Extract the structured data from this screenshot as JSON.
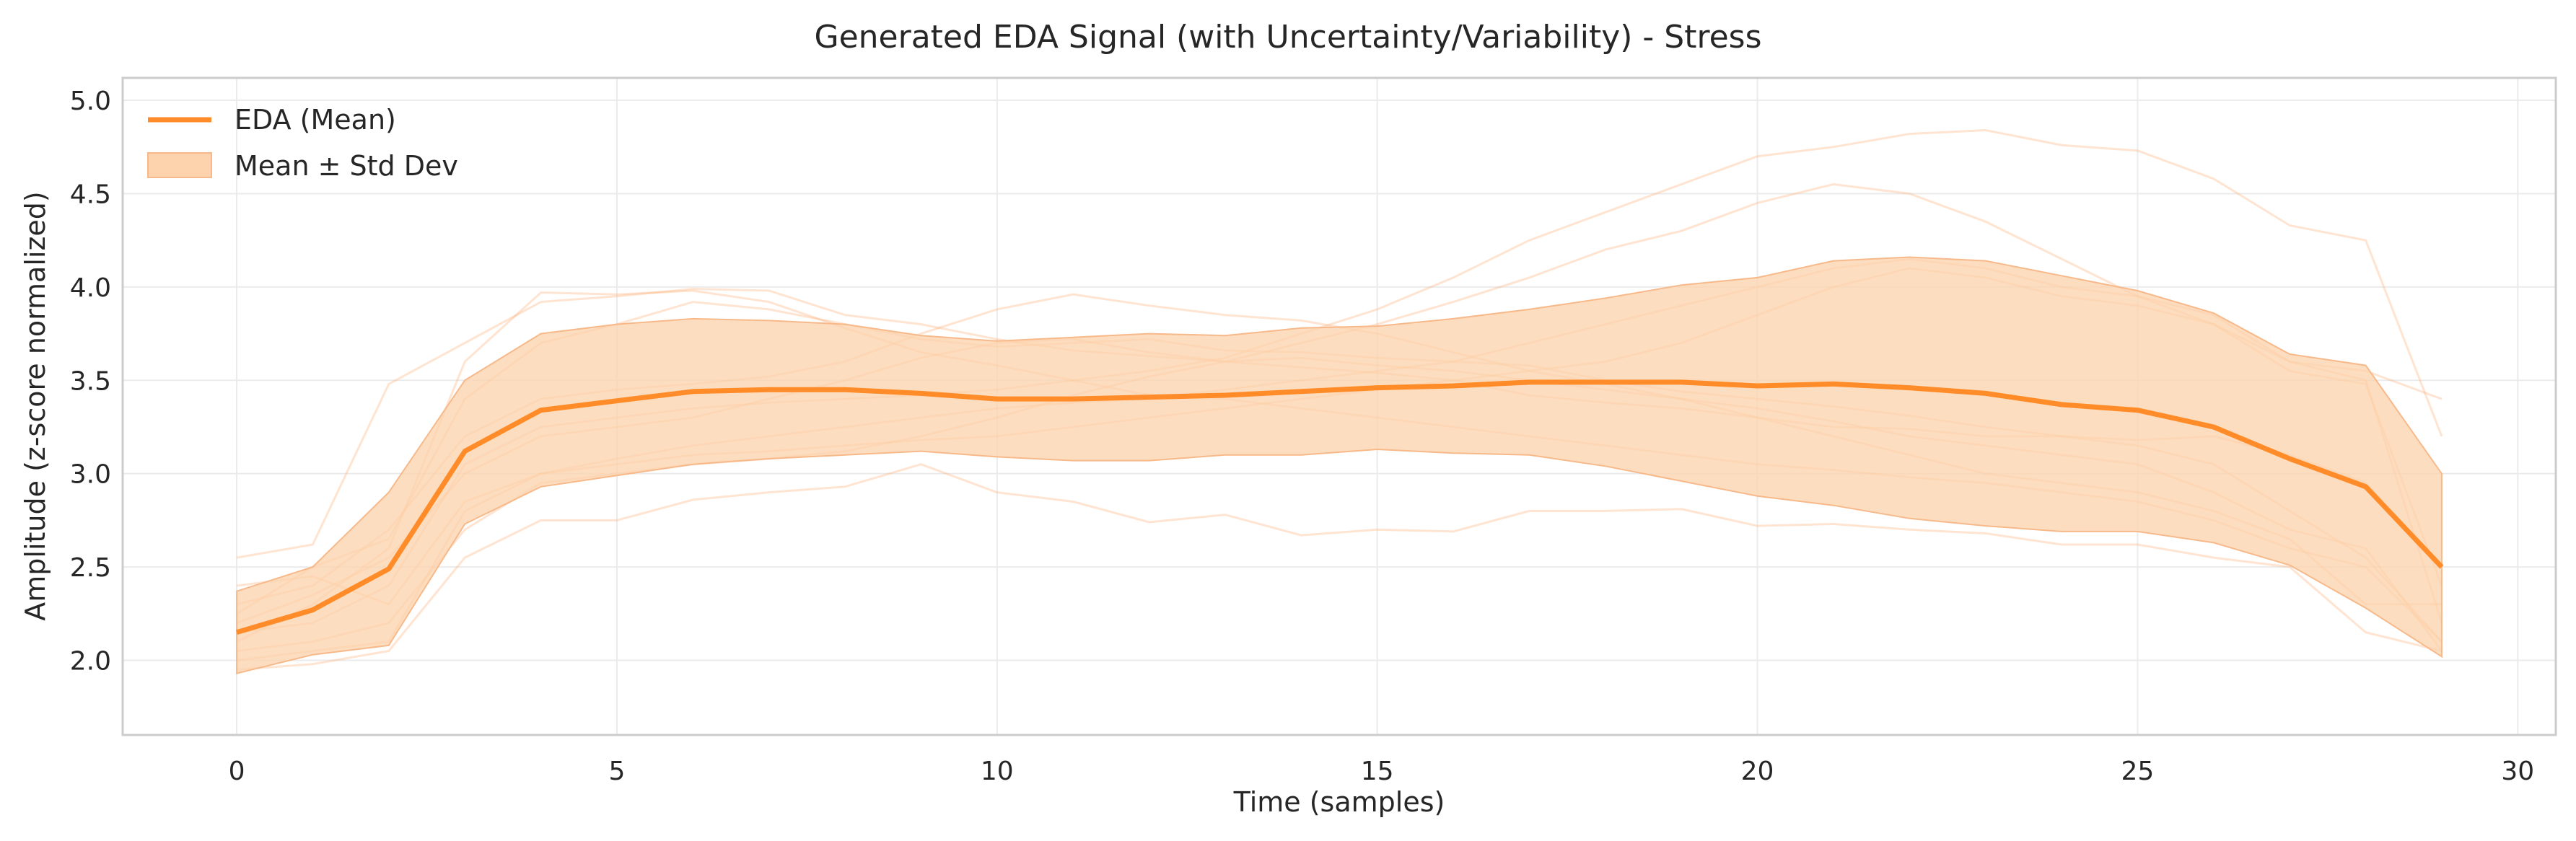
{
  "chart_data": {
    "type": "line",
    "title": "Generated EDA Signal (with Uncertainty/Variability) - Stress",
    "xlabel": "Time (samples)",
    "ylabel": "Amplitude (z-score normalized)",
    "xlim": [
      -1.5,
      30.5
    ],
    "ylim": [
      1.6,
      5.12
    ],
    "xticks": [
      0,
      5,
      10,
      15,
      20,
      25,
      30
    ],
    "yticks": [
      2.0,
      2.5,
      3.0,
      3.5,
      4.0,
      4.5,
      5.0
    ],
    "xtick_labels": [
      "0",
      "5",
      "10",
      "15",
      "20",
      "25",
      "30"
    ],
    "ytick_labels": [
      "2.0",
      "2.5",
      "3.0",
      "3.5",
      "4.0",
      "4.5",
      "5.0"
    ],
    "grid": true,
    "legend_position": "top-left",
    "colors": {
      "mean_line": "#ff8c28",
      "band_fill": "#fcd3ad",
      "band_edge": "#f7b98a",
      "samples": "#fcb37a"
    },
    "x": [
      0,
      1,
      2,
      3,
      4,
      5,
      6,
      7,
      8,
      9,
      10,
      11,
      12,
      13,
      14,
      15,
      16,
      17,
      18,
      19,
      20,
      21,
      22,
      23,
      24,
      25,
      26,
      27,
      28,
      29
    ],
    "series": [
      {
        "name": "EDA (Mean)",
        "role": "mean",
        "values": [
          2.15,
          2.27,
          2.49,
          3.12,
          3.34,
          3.39,
          3.44,
          3.45,
          3.45,
          3.43,
          3.4,
          3.4,
          3.41,
          3.42,
          3.44,
          3.46,
          3.47,
          3.49,
          3.49,
          3.49,
          3.47,
          3.48,
          3.46,
          3.43,
          3.37,
          3.34,
          3.25,
          3.08,
          2.93,
          2.5
        ]
      }
    ],
    "band": {
      "name": "Mean ± Std Dev",
      "upper": [
        2.37,
        2.5,
        2.9,
        3.5,
        3.75,
        3.8,
        3.83,
        3.82,
        3.8,
        3.74,
        3.71,
        3.73,
        3.75,
        3.74,
        3.78,
        3.79,
        3.83,
        3.88,
        3.94,
        4.01,
        4.05,
        4.14,
        4.16,
        4.14,
        4.06,
        3.98,
        3.86,
        3.64,
        3.58,
        3.0
      ],
      "lower": [
        1.93,
        2.03,
        2.08,
        2.73,
        2.93,
        2.99,
        3.05,
        3.08,
        3.1,
        3.12,
        3.09,
        3.07,
        3.07,
        3.1,
        3.1,
        3.13,
        3.11,
        3.1,
        3.04,
        2.96,
        2.88,
        2.83,
        2.76,
        2.72,
        2.69,
        2.69,
        2.63,
        2.51,
        2.28,
        2.02
      ]
    },
    "samples": [
      [
        2.55,
        2.62,
        3.48,
        3.7,
        3.92,
        3.95,
        3.99,
        3.98,
        3.85,
        3.8,
        3.72,
        3.66,
        3.63,
        3.6,
        3.57,
        3.54,
        3.5,
        3.42,
        3.38,
        3.35,
        3.3,
        3.25,
        3.24,
        3.2,
        3.2,
        3.18,
        3.2,
        3.1,
        2.95,
        2.5
      ],
      [
        2.25,
        2.5,
        2.65,
        3.4,
        3.7,
        3.8,
        3.92,
        3.88,
        3.8,
        3.72,
        3.68,
        3.7,
        3.72,
        3.66,
        3.65,
        3.62,
        3.6,
        3.58,
        3.5,
        3.44,
        3.4,
        3.36,
        3.31,
        3.25,
        3.2,
        3.15,
        3.05,
        2.8,
        2.55,
        2.1
      ],
      [
        1.95,
        1.98,
        2.05,
        2.55,
        2.75,
        2.75,
        2.86,
        2.9,
        2.93,
        3.05,
        2.9,
        2.85,
        2.74,
        2.78,
        2.67,
        2.7,
        2.69,
        2.8,
        2.8,
        2.81,
        2.72,
        2.73,
        2.7,
        2.68,
        2.62,
        2.62,
        2.55,
        2.5,
        2.15,
        2.05
      ],
      [
        2.4,
        2.45,
        2.3,
        2.85,
        3.0,
        3.08,
        3.15,
        3.2,
        3.25,
        3.3,
        3.35,
        3.38,
        3.4,
        3.45,
        3.5,
        3.55,
        3.6,
        3.7,
        3.8,
        3.9,
        4.0,
        4.1,
        4.15,
        4.1,
        4.0,
        3.95,
        3.85,
        3.6,
        3.55,
        3.4
      ],
      [
        2.05,
        2.1,
        2.2,
        2.7,
        2.95,
        3.0,
        3.05,
        3.08,
        3.12,
        3.2,
        3.3,
        3.42,
        3.52,
        3.6,
        3.7,
        3.8,
        3.92,
        4.05,
        4.2,
        4.3,
        4.45,
        4.55,
        4.5,
        4.35,
        4.15,
        3.95,
        3.8,
        3.55,
        3.48,
        2.4
      ],
      [
        2.2,
        2.35,
        2.55,
        3.0,
        3.2,
        3.25,
        3.3,
        3.4,
        3.5,
        3.62,
        3.7,
        3.72,
        3.65,
        3.6,
        3.62,
        3.58,
        3.55,
        3.5,
        3.45,
        3.4,
        3.35,
        3.28,
        3.2,
        3.15,
        3.1,
        3.05,
        2.9,
        2.7,
        2.6,
        2.05
      ],
      [
        2.1,
        2.3,
        2.6,
        3.6,
        3.97,
        3.96,
        3.98,
        3.92,
        3.78,
        3.65,
        3.58,
        3.5,
        3.42,
        3.4,
        3.35,
        3.3,
        3.25,
        3.2,
        3.15,
        3.1,
        3.05,
        3.02,
        2.98,
        2.95,
        2.9,
        2.85,
        2.75,
        2.6,
        2.5,
        2.1
      ],
      [
        2.3,
        2.4,
        2.7,
        3.2,
        3.4,
        3.45,
        3.48,
        3.52,
        3.6,
        3.75,
        3.88,
        3.96,
        3.9,
        3.85,
        3.82,
        3.75,
        3.65,
        3.55,
        3.48,
        3.4,
        3.3,
        3.2,
        3.1,
        3.0,
        2.95,
        2.9,
        2.8,
        2.65,
        2.3,
        2.3
      ],
      [
        2.15,
        2.2,
        2.4,
        3.05,
        3.25,
        3.3,
        3.35,
        3.38,
        3.4,
        3.42,
        3.45,
        3.5,
        3.55,
        3.62,
        3.75,
        3.88,
        4.05,
        4.25,
        4.4,
        4.55,
        4.7,
        4.75,
        4.82,
        4.84,
        4.76,
        4.73,
        4.58,
        4.33,
        4.25,
        3.2
      ],
      [
        2.0,
        2.05,
        2.1,
        2.8,
        3.0,
        3.05,
        3.1,
        3.12,
        3.15,
        3.18,
        3.2,
        3.25,
        3.3,
        3.35,
        3.4,
        3.45,
        3.5,
        3.55,
        3.6,
        3.7,
        3.85,
        4.0,
        4.1,
        4.05,
        3.95,
        3.9,
        3.8,
        3.6,
        3.5,
        2.2
      ]
    ]
  }
}
